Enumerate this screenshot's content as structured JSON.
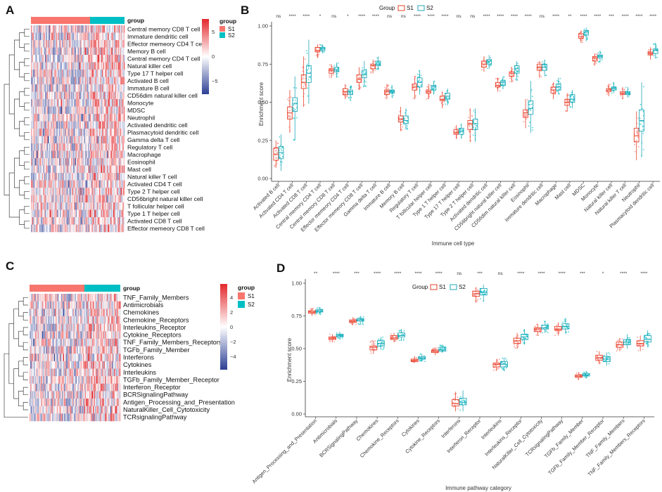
{
  "panels": {
    "a": "A",
    "b": "B",
    "c": "C",
    "d": "D"
  },
  "colors": {
    "S1": "#F8766D",
    "S2": "#00BFC4",
    "S1_stroke": "#E8412A",
    "S2_stroke": "#1FA8B8",
    "heat_hi": "#E3272B",
    "heat_lo": "#2C3E94"
  },
  "heatmap_a": {
    "group_label": "group",
    "legend_title": "group",
    "legend_items": [
      "S1",
      "S2"
    ],
    "scale_ticks": [
      "5",
      "0",
      "−5"
    ],
    "rows": [
      "Central memory CD8 T cell",
      "Immature dendritic cell",
      "Effector memeory CD4 T cell",
      "Memory B cell",
      "Central memory CD4 T cell",
      "Natural killer cell",
      "Type 17 T helper cell",
      "Activated B cell",
      "Immature  B cell",
      "CD56dim natural killer cell",
      "Monocyte",
      "MDSC",
      "Neutrophil",
      "Activated dendritic cell",
      "Plasmacytoid dendritic cell",
      "Gamma delta T cell",
      "Regulatory T cell",
      "Macrophage",
      "Eosinophil",
      "Mast cell",
      "Natural killer T cell",
      "Activated CD4 T cell",
      "Type 2 T helper cell",
      "CD56bright natural killer cell",
      "T follicular helper cell",
      "Type 1 T helper cell",
      "Activated CD8 T cell",
      "Effector memeory CD8 T cell"
    ]
  },
  "heatmap_c": {
    "group_label": "group",
    "legend_title": "group",
    "legend_items": [
      "S1",
      "S2"
    ],
    "scale_ticks": [
      "4",
      "2",
      "0",
      "−2",
      "−4"
    ],
    "rows": [
      "TNF_Family_Members",
      "Antimicrobials",
      "Chemokines",
      "Chemokine_Receptors",
      "Interleukins_Receptor",
      "Cytokine_Receptors",
      "TNF_Family_Members_Receptors",
      "TGFb_Family_Member",
      "Interferons",
      "Cytokines",
      "Interleukins",
      "TGFb_Family_Member_Receptor",
      "Interferon_Receptor",
      "BCRSignalingPathway",
      "Antigen_Processing_and_Presentation",
      "NaturalKiller_Cell_Cytotoxicity",
      "TCRsignalingPathway"
    ]
  },
  "chart_data": [
    {
      "panel": "B",
      "type": "box",
      "legend_title": "Group",
      "series_names": [
        "S1",
        "S2"
      ],
      "xlabel": "Immune cell type",
      "ylabel": "Enrichment score",
      "ylim": [
        0,
        1
      ],
      "yticks": [
        "0.00",
        "0.25",
        "0.50",
        "0.75",
        "1.00"
      ],
      "categories": [
        "Activated B cell",
        "Activated CD4 T cell",
        "Activated CD8 T cell",
        "Central memory CD4 T cell",
        "Central memory CD8 T cell",
        "Effector memeory CD4 T cell",
        "Effector memeory CD8 T cell",
        "Gamma delta T cell",
        "Immature  B cell",
        "Memory B cell",
        "Regulatory T cell",
        "T follicular helper cell",
        "Type 1 T helper cell",
        "Type 17 T helper cell",
        "Type 2 T helper cell",
        "Activated dendritic cell",
        "CD56bright natural killer cell",
        "CD56dim natural killer cell",
        "Eosinophil",
        "Immature dendritic cell",
        "Macrophage",
        "Mast cell",
        "MDSC",
        "Monocyte",
        "Natural killer cell",
        "Natural killer T cell",
        "Neutrophil",
        "Plasmacytoid dendritic cell"
      ],
      "significance": [
        "ns",
        "****",
        "****",
        "*",
        "ns",
        "*",
        "****",
        "****",
        "ns",
        "ns",
        "****",
        "****",
        "****",
        "ns",
        "ns",
        "****",
        "****",
        "****",
        "****",
        "ns",
        "****",
        "**",
        "****",
        "****",
        "***",
        "****",
        "****",
        "****"
      ],
      "S1": [
        [
          0.07,
          0.12,
          0.16,
          0.2,
          0.25
        ],
        [
          0.3,
          0.39,
          0.43,
          0.47,
          0.58
        ],
        [
          0.47,
          0.59,
          0.63,
          0.68,
          0.8
        ],
        [
          0.79,
          0.83,
          0.84,
          0.86,
          0.88
        ],
        [
          0.66,
          0.69,
          0.71,
          0.72,
          0.75
        ],
        [
          0.52,
          0.55,
          0.57,
          0.59,
          0.62
        ],
        [
          0.58,
          0.63,
          0.65,
          0.68,
          0.73
        ],
        [
          0.69,
          0.72,
          0.74,
          0.75,
          0.78
        ],
        [
          0.52,
          0.55,
          0.57,
          0.58,
          0.62
        ],
        [
          0.31,
          0.37,
          0.39,
          0.41,
          0.47
        ],
        [
          0.52,
          0.58,
          0.6,
          0.62,
          0.67
        ],
        [
          0.52,
          0.56,
          0.57,
          0.58,
          0.62
        ],
        [
          0.46,
          0.51,
          0.52,
          0.54,
          0.57
        ],
        [
          0.26,
          0.29,
          0.3,
          0.32,
          0.35
        ],
        [
          0.24,
          0.32,
          0.36,
          0.38,
          0.46
        ],
        [
          0.7,
          0.73,
          0.75,
          0.77,
          0.8
        ],
        [
          0.57,
          0.6,
          0.61,
          0.63,
          0.66
        ],
        [
          0.63,
          0.67,
          0.69,
          0.7,
          0.73
        ],
        [
          0.33,
          0.4,
          0.43,
          0.45,
          0.52
        ],
        [
          0.66,
          0.71,
          0.73,
          0.75,
          0.77
        ],
        [
          0.52,
          0.56,
          0.58,
          0.6,
          0.63
        ],
        [
          0.44,
          0.48,
          0.5,
          0.52,
          0.56
        ],
        [
          0.89,
          0.92,
          0.93,
          0.95,
          0.97
        ],
        [
          0.74,
          0.77,
          0.79,
          0.8,
          0.82
        ],
        [
          0.54,
          0.57,
          0.58,
          0.59,
          0.62
        ],
        [
          0.52,
          0.55,
          0.56,
          0.57,
          0.6
        ],
        [
          0.12,
          0.24,
          0.28,
          0.33,
          0.44
        ],
        [
          0.78,
          0.81,
          0.82,
          0.83,
          0.86
        ]
      ],
      "S2": [
        [
          0.05,
          0.13,
          0.17,
          0.21,
          0.29
        ],
        [
          0.25,
          0.44,
          0.49,
          0.53,
          0.67
        ],
        [
          0.49,
          0.63,
          0.69,
          0.74,
          0.91
        ],
        [
          0.82,
          0.84,
          0.85,
          0.86,
          0.88
        ],
        [
          0.66,
          0.7,
          0.71,
          0.73,
          0.76
        ],
        [
          0.51,
          0.55,
          0.57,
          0.58,
          0.61
        ],
        [
          0.6,
          0.66,
          0.68,
          0.71,
          0.77
        ],
        [
          0.71,
          0.74,
          0.75,
          0.77,
          0.8
        ],
        [
          0.53,
          0.56,
          0.57,
          0.58,
          0.61
        ],
        [
          0.32,
          0.36,
          0.38,
          0.41,
          0.46
        ],
        [
          0.55,
          0.6,
          0.63,
          0.66,
          0.71
        ],
        [
          0.55,
          0.58,
          0.6,
          0.61,
          0.64
        ],
        [
          0.48,
          0.52,
          0.54,
          0.56,
          0.59
        ],
        [
          0.26,
          0.29,
          0.31,
          0.33,
          0.36
        ],
        [
          0.24,
          0.32,
          0.36,
          0.39,
          0.46
        ],
        [
          0.72,
          0.75,
          0.77,
          0.78,
          0.81
        ],
        [
          0.59,
          0.61,
          0.63,
          0.64,
          0.67
        ],
        [
          0.64,
          0.69,
          0.72,
          0.74,
          0.77
        ],
        [
          0.3,
          0.42,
          0.46,
          0.51,
          0.64
        ],
        [
          0.67,
          0.71,
          0.73,
          0.75,
          0.78
        ],
        [
          0.55,
          0.58,
          0.6,
          0.62,
          0.66
        ],
        [
          0.46,
          0.5,
          0.52,
          0.55,
          0.58
        ],
        [
          0.9,
          0.94,
          0.96,
          0.97,
          0.99
        ],
        [
          0.76,
          0.79,
          0.8,
          0.81,
          0.84
        ],
        [
          0.56,
          0.58,
          0.59,
          0.6,
          0.63
        ],
        [
          0.53,
          0.55,
          0.56,
          0.57,
          0.6
        ],
        [
          0.14,
          0.31,
          0.38,
          0.45,
          0.63
        ],
        [
          0.79,
          0.82,
          0.84,
          0.85,
          0.89
        ]
      ]
    },
    {
      "panel": "D",
      "type": "box",
      "legend_title": "Group",
      "series_names": [
        "S1",
        "S2"
      ],
      "xlabel": "Immune pathway category",
      "ylabel": "Enrichment score",
      "ylim": [
        0,
        1
      ],
      "yticks": [
        "0.00",
        "0.25",
        "0.50",
        "0.75",
        "1.00"
      ],
      "categories": [
        "Antigen_Processing_and_Presentation",
        "Antimicrobials",
        "BCRSignalingPathway",
        "Chemokines",
        "Chemokine_Receptors",
        "Cytokines",
        "Cytokine_Receptors",
        "Interferons",
        "Interferon_Receptor",
        "Interleukins",
        "Interleukins_Receptor",
        "NaturalKiller_Cell_Cytotoxicity",
        "TCRsignalingPathway",
        "TGFb_Family_Member",
        "TGFb_Family_Member_Receptor",
        "TNF_Family_Members",
        "TNF_Family_Members_Receptors"
      ],
      "significance": [
        "**",
        "****",
        "***",
        "****",
        "****",
        "****",
        "****",
        "ns",
        "***",
        "ns",
        "****",
        "****",
        "****",
        "***",
        "*",
        "****",
        "****"
      ],
      "S1": [
        [
          0.75,
          0.77,
          0.78,
          0.79,
          0.81
        ],
        [
          0.55,
          0.57,
          0.58,
          0.59,
          0.61
        ],
        [
          0.68,
          0.7,
          0.71,
          0.72,
          0.74
        ],
        [
          0.46,
          0.49,
          0.51,
          0.52,
          0.56
        ],
        [
          0.55,
          0.57,
          0.58,
          0.6,
          0.62
        ],
        [
          0.39,
          0.4,
          0.41,
          0.42,
          0.44
        ],
        [
          0.45,
          0.47,
          0.48,
          0.49,
          0.51
        ],
        [
          0.02,
          0.06,
          0.08,
          0.11,
          0.17
        ],
        [
          0.85,
          0.9,
          0.92,
          0.94,
          0.97
        ],
        [
          0.33,
          0.36,
          0.38,
          0.39,
          0.42
        ],
        [
          0.5,
          0.54,
          0.56,
          0.58,
          0.62
        ],
        [
          0.6,
          0.63,
          0.65,
          0.66,
          0.69
        ],
        [
          0.6,
          0.64,
          0.65,
          0.67,
          0.7
        ],
        [
          0.26,
          0.28,
          0.29,
          0.3,
          0.32
        ],
        [
          0.38,
          0.41,
          0.43,
          0.45,
          0.48
        ],
        [
          0.48,
          0.51,
          0.53,
          0.55,
          0.58
        ],
        [
          0.48,
          0.52,
          0.54,
          0.56,
          0.6
        ]
      ],
      "S2": [
        [
          0.76,
          0.78,
          0.79,
          0.8,
          0.82
        ],
        [
          0.57,
          0.59,
          0.6,
          0.61,
          0.63
        ],
        [
          0.68,
          0.71,
          0.72,
          0.73,
          0.75
        ],
        [
          0.49,
          0.52,
          0.54,
          0.56,
          0.59
        ],
        [
          0.56,
          0.59,
          0.6,
          0.62,
          0.65
        ],
        [
          0.4,
          0.42,
          0.43,
          0.44,
          0.46
        ],
        [
          0.47,
          0.48,
          0.49,
          0.51,
          0.53
        ],
        [
          0.02,
          0.07,
          0.09,
          0.12,
          0.18
        ],
        [
          0.86,
          0.91,
          0.93,
          0.96,
          0.99
        ],
        [
          0.33,
          0.36,
          0.38,
          0.4,
          0.43
        ],
        [
          0.53,
          0.57,
          0.59,
          0.61,
          0.65
        ],
        [
          0.62,
          0.65,
          0.66,
          0.68,
          0.71
        ],
        [
          0.61,
          0.65,
          0.67,
          0.69,
          0.73
        ],
        [
          0.27,
          0.29,
          0.3,
          0.31,
          0.33
        ],
        [
          0.37,
          0.4,
          0.42,
          0.44,
          0.47
        ],
        [
          0.5,
          0.53,
          0.55,
          0.57,
          0.61
        ],
        [
          0.51,
          0.55,
          0.57,
          0.6,
          0.64
        ]
      ]
    }
  ]
}
